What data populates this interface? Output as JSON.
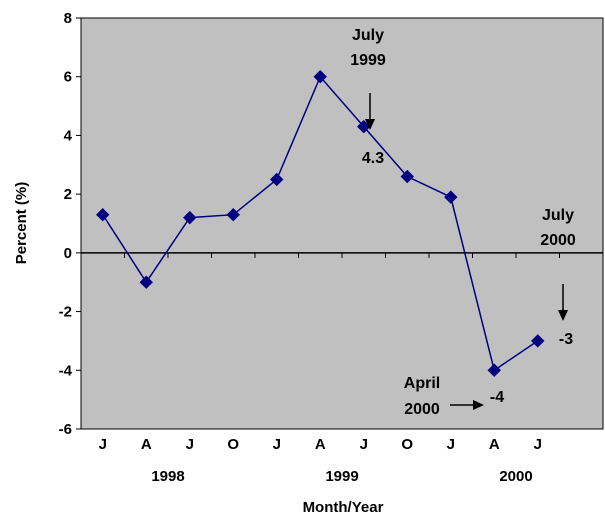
{
  "chart_data": {
    "type": "line",
    "ylabel": "Percent (%)",
    "xlabel": "Month/Year",
    "ylim": [
      -6,
      8
    ],
    "yticks": [
      -6,
      -4,
      -2,
      0,
      2,
      4,
      6,
      8
    ],
    "categories": [
      "J",
      "A",
      "J",
      "O",
      "J",
      "A",
      "J",
      "O",
      "J",
      "A",
      "J",
      ""
    ],
    "years": [
      {
        "label": "1998",
        "center_index": 1.5
      },
      {
        "label": "1999",
        "center_index": 5.5
      },
      {
        "label": "2000",
        "center_index": 9.5
      }
    ],
    "series": [
      {
        "values": [
          1.3,
          -1.0,
          1.2,
          1.3,
          2.5,
          6.0,
          4.3,
          2.6,
          1.9,
          -4.0,
          -3.0,
          null
        ],
        "color": "#000080"
      }
    ],
    "grid": false,
    "plot_background": "#c0c0c0",
    "annotations": [
      {
        "lines": [
          "July",
          "1999"
        ]
      },
      {
        "text": "4.3"
      },
      {
        "lines": [
          "July",
          "2000"
        ]
      },
      {
        "text": "-3"
      },
      {
        "lines": [
          "April",
          "2000"
        ]
      },
      {
        "text": "-4"
      }
    ]
  }
}
